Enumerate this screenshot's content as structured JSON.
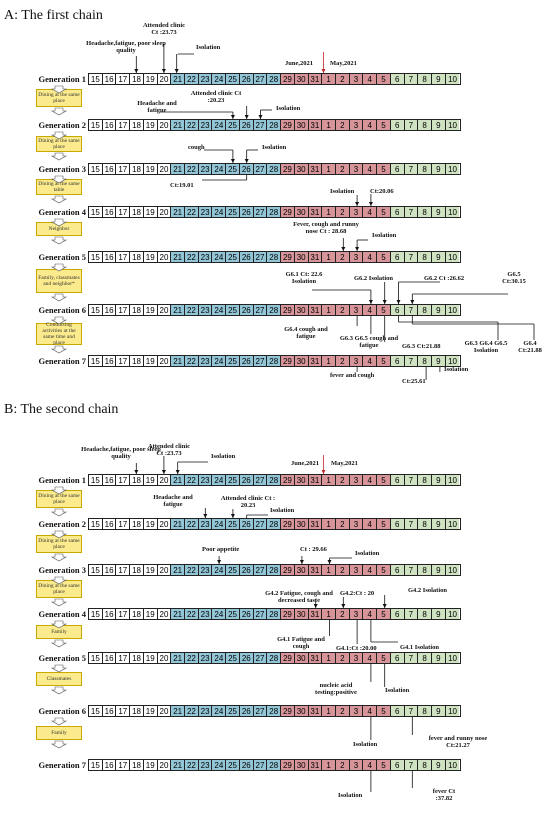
{
  "chain_a": {
    "title": "A: The first chain",
    "generations": [
      "Generation 1",
      "Generation 2",
      "Generation 3",
      "Generation 4",
      "Generation 5",
      "Generation 6",
      "Generation 7"
    ],
    "links": [
      "Dining at the same place",
      "Dining at the same place",
      "Dining at the same table",
      "Neighbor",
      "Family, classmates and neighbor*",
      "Conducting activities at the same time and place"
    ],
    "month_label_june": "June,2021",
    "month_label_may": "May,2021",
    "annotations": {
      "g1_symptoms": "Headache,fatigue, poor sleep quality",
      "g1_clinic": "Attended clinic Ct :23.73",
      "g1_isolation": "Isolation",
      "g2_symptoms": "Headache and fatigue",
      "g2_clinic": "Attended clinic Ct :20.23",
      "g2_isolation": "Isolation",
      "g3_symptoms": "cough",
      "g3_isolation": "Isolation",
      "g3_ct": "Ct:19.01",
      "g4_isolation": "Isolation",
      "g4_ct": "Ct:20.06",
      "g5_symptoms": "Fever, cough and runny nose Ct : 28.68",
      "g5_isolation": "Isolation",
      "g6_1": "G6.1 Ct: 22.6 Isolation",
      "g6_2_iso": "G6.2 Isolation",
      "g6_2_ct": "G6.2 Ct :26.62",
      "g6_5": "G6.5 Ct:30.15",
      "g6_4_sym": "G6.4 cough and fatigue",
      "g6_35_sym": "G6.3 G6.5 cough and fatigue",
      "g6_3_ct": "G6.3 Ct:21.88",
      "g6_345_iso": "G6.3 G6.4 G6.5 Isolation",
      "g6_4_ct": "G6.4 Ct:21.88",
      "g7_sym": "fever and cough",
      "g7_ct": "Ct:25.61",
      "g7_iso": "Isolation"
    }
  },
  "chain_b": {
    "title": "B: The second chain",
    "generations": [
      "Generation 1",
      "Generation 2",
      "Generation 3",
      "Generation 4",
      "Generation 5",
      "Generation 6",
      "Generation 7"
    ],
    "links": [
      "Dining at the same place",
      "Dining at the same place",
      "Dining at the same place",
      "Family",
      "Classmates",
      "Family"
    ],
    "month_label_june": "June,2021",
    "month_label_may": "May,2021",
    "annotations": {
      "g1_symptoms": "Headache,fatigue, poor sleep quality",
      "g1_clinic": "Attended clinic Ct :23.73",
      "g1_isolation": "Isolation",
      "g2_symptoms": "Headache and fatigue",
      "g2_clinic": "Attended clinic Ct : 20.23",
      "g2_isolation": "Isolation",
      "g3_symptoms": "Poor appetite",
      "g3_ct": "Ct : 29.66",
      "g3_isolation": "Isolation",
      "g4_2_sym": "G4.2 Fatigue, cough and decreased taste",
      "g4_2_ct": "G4.2:Ct : 20",
      "g4_2_iso": "G4.2 Isolation",
      "g4_1_sym": "G4.1 Fatigue and cough",
      "g4_1_ct": "G4.1:Ct :20.00",
      "g4_1_iso": "G4.1 Isolation",
      "g5_nucleic": "nucleic acid testing:positive",
      "g5_iso": "Isolation",
      "g6_iso": "Isolation",
      "g6_sym": "fever and runny nose Ct:21.27",
      "g7_iso": "Isolation",
      "g7_sym": "fever Ct :37.82"
    }
  },
  "timeline": {
    "days": [
      "15",
      "16",
      "17",
      "18",
      "19",
      "20",
      "21",
      "22",
      "23",
      "24",
      "25",
      "26",
      "27",
      "28",
      "29",
      "30",
      "31",
      "1",
      "2",
      "3",
      "4",
      "5",
      "6",
      "7",
      "8",
      "9",
      "10"
    ]
  },
  "colors": {
    "uninfected": "#ffffff",
    "incubation": "#92c5d6",
    "symptomatic": "#d7959a",
    "isolated": "#cfe3c2",
    "link_box": "#fbeb8c",
    "marker": "#c0282e"
  },
  "rows_a": [
    [
      "w",
      "w",
      "w",
      "w",
      "w",
      "w",
      "b",
      "b",
      "b",
      "b",
      "b",
      "b",
      "b",
      "b",
      "r",
      "r",
      "r",
      "r",
      "r",
      "r",
      "r",
      "r",
      "g",
      "g",
      "g",
      "g",
      "g"
    ],
    [
      "w",
      "w",
      "w",
      "w",
      "w",
      "w",
      "b",
      "b",
      "b",
      "b",
      "b",
      "b",
      "b",
      "b",
      "r",
      "r",
      "r",
      "r",
      "r",
      "r",
      "r",
      "r",
      "g",
      "g",
      "g",
      "g",
      "g"
    ],
    [
      "w",
      "w",
      "w",
      "w",
      "w",
      "w",
      "b",
      "b",
      "b",
      "b",
      "b",
      "b",
      "b",
      "b",
      "r",
      "r",
      "r",
      "r",
      "r",
      "r",
      "r",
      "r",
      "g",
      "g",
      "g",
      "g",
      "g"
    ],
    [
      "w",
      "w",
      "w",
      "w",
      "w",
      "w",
      "b",
      "b",
      "b",
      "b",
      "b",
      "b",
      "b",
      "b",
      "r",
      "r",
      "r",
      "r",
      "r",
      "r",
      "r",
      "r",
      "g",
      "g",
      "g",
      "g",
      "g"
    ],
    [
      "w",
      "w",
      "w",
      "w",
      "w",
      "w",
      "b",
      "b",
      "b",
      "b",
      "b",
      "b",
      "b",
      "b",
      "r",
      "r",
      "r",
      "r",
      "r",
      "r",
      "r",
      "r",
      "g",
      "g",
      "g",
      "g",
      "g"
    ],
    [
      "w",
      "w",
      "w",
      "w",
      "w",
      "w",
      "b",
      "b",
      "b",
      "b",
      "b",
      "b",
      "b",
      "b",
      "r",
      "r",
      "r",
      "r",
      "r",
      "r",
      "r",
      "r",
      "g",
      "g",
      "g",
      "g",
      "g"
    ],
    [
      "w",
      "w",
      "w",
      "w",
      "w",
      "w",
      "b",
      "b",
      "b",
      "b",
      "b",
      "b",
      "b",
      "b",
      "r",
      "r",
      "r",
      "r",
      "r",
      "r",
      "r",
      "r",
      "g",
      "g",
      "g",
      "g",
      "g"
    ]
  ],
  "rows_b": [
    [
      "w",
      "w",
      "w",
      "w",
      "w",
      "w",
      "b",
      "b",
      "b",
      "b",
      "b",
      "b",
      "b",
      "b",
      "r",
      "r",
      "r",
      "r",
      "r",
      "r",
      "r",
      "r",
      "g",
      "g",
      "g",
      "g",
      "g"
    ],
    [
      "w",
      "w",
      "w",
      "w",
      "w",
      "w",
      "b",
      "b",
      "b",
      "b",
      "b",
      "b",
      "b",
      "b",
      "r",
      "r",
      "r",
      "r",
      "r",
      "r",
      "r",
      "r",
      "g",
      "g",
      "g",
      "g",
      "g"
    ],
    [
      "w",
      "w",
      "w",
      "w",
      "w",
      "w",
      "b",
      "b",
      "b",
      "b",
      "b",
      "b",
      "b",
      "b",
      "r",
      "r",
      "r",
      "r",
      "r",
      "r",
      "r",
      "r",
      "g",
      "g",
      "g",
      "g",
      "g"
    ],
    [
      "w",
      "w",
      "w",
      "w",
      "w",
      "w",
      "b",
      "b",
      "b",
      "b",
      "b",
      "b",
      "b",
      "b",
      "r",
      "r",
      "r",
      "r",
      "r",
      "r",
      "r",
      "r",
      "g",
      "g",
      "g",
      "g",
      "g"
    ],
    [
      "w",
      "w",
      "w",
      "w",
      "w",
      "w",
      "b",
      "b",
      "b",
      "b",
      "b",
      "b",
      "b",
      "b",
      "r",
      "r",
      "r",
      "r",
      "r",
      "r",
      "r",
      "r",
      "g",
      "g",
      "g",
      "g",
      "g"
    ],
    [
      "w",
      "w",
      "w",
      "w",
      "w",
      "w",
      "b",
      "b",
      "b",
      "b",
      "b",
      "b",
      "b",
      "b",
      "r",
      "r",
      "r",
      "r",
      "r",
      "r",
      "r",
      "r",
      "g",
      "g",
      "g",
      "g",
      "g"
    ],
    [
      "w",
      "w",
      "w",
      "w",
      "w",
      "w",
      "b",
      "b",
      "b",
      "b",
      "b",
      "b",
      "b",
      "b",
      "r",
      "r",
      "r",
      "r",
      "r",
      "r",
      "r",
      "r",
      "g",
      "g",
      "g",
      "g",
      "g"
    ]
  ]
}
